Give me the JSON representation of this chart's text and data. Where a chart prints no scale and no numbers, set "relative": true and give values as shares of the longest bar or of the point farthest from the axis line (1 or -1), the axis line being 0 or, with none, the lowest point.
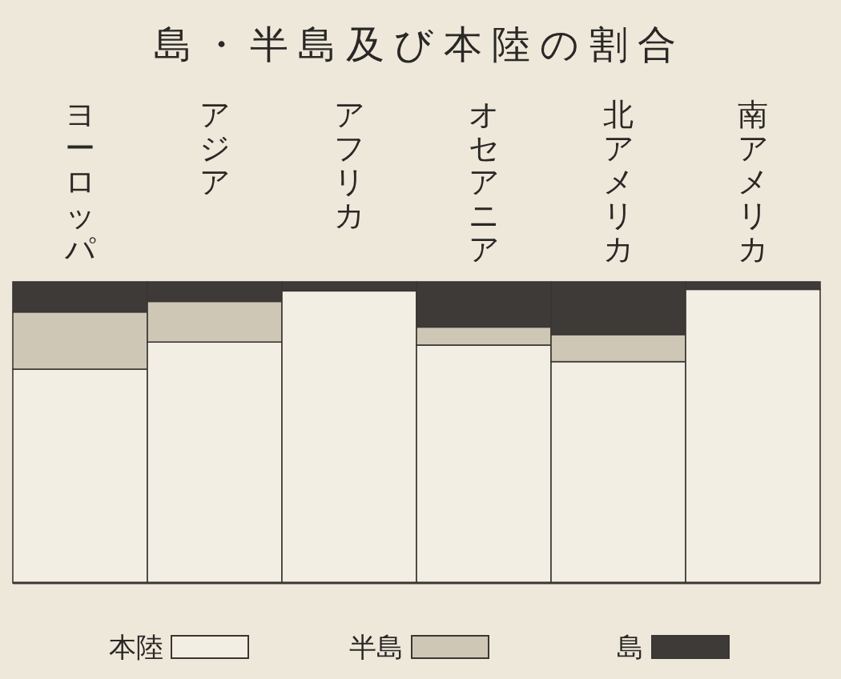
{
  "chart_data": {
    "type": "bar",
    "title": "島・半島及び本陸の割合",
    "categories": [
      "ヨーロッパ",
      "アジア",
      "アフリカ",
      "オセアニア",
      "北アメリカ",
      "南アメリカ"
    ],
    "stacked": true,
    "relative": true,
    "legend": "bottom",
    "series": [
      {
        "name": "本陸",
        "color": "#f3eee3",
        "values": [
          0.71,
          0.8,
          0.97,
          0.79,
          0.735,
          0.975
        ]
      },
      {
        "name": "半島",
        "color": "#cfc7b6",
        "values": [
          0.19,
          0.135,
          0,
          0.06,
          0.09,
          0
        ]
      },
      {
        "name": "島",
        "color": "#3d3a37",
        "values": [
          0.1,
          0.065,
          0.03,
          0.15,
          0.175,
          0.025
        ]
      }
    ]
  }
}
